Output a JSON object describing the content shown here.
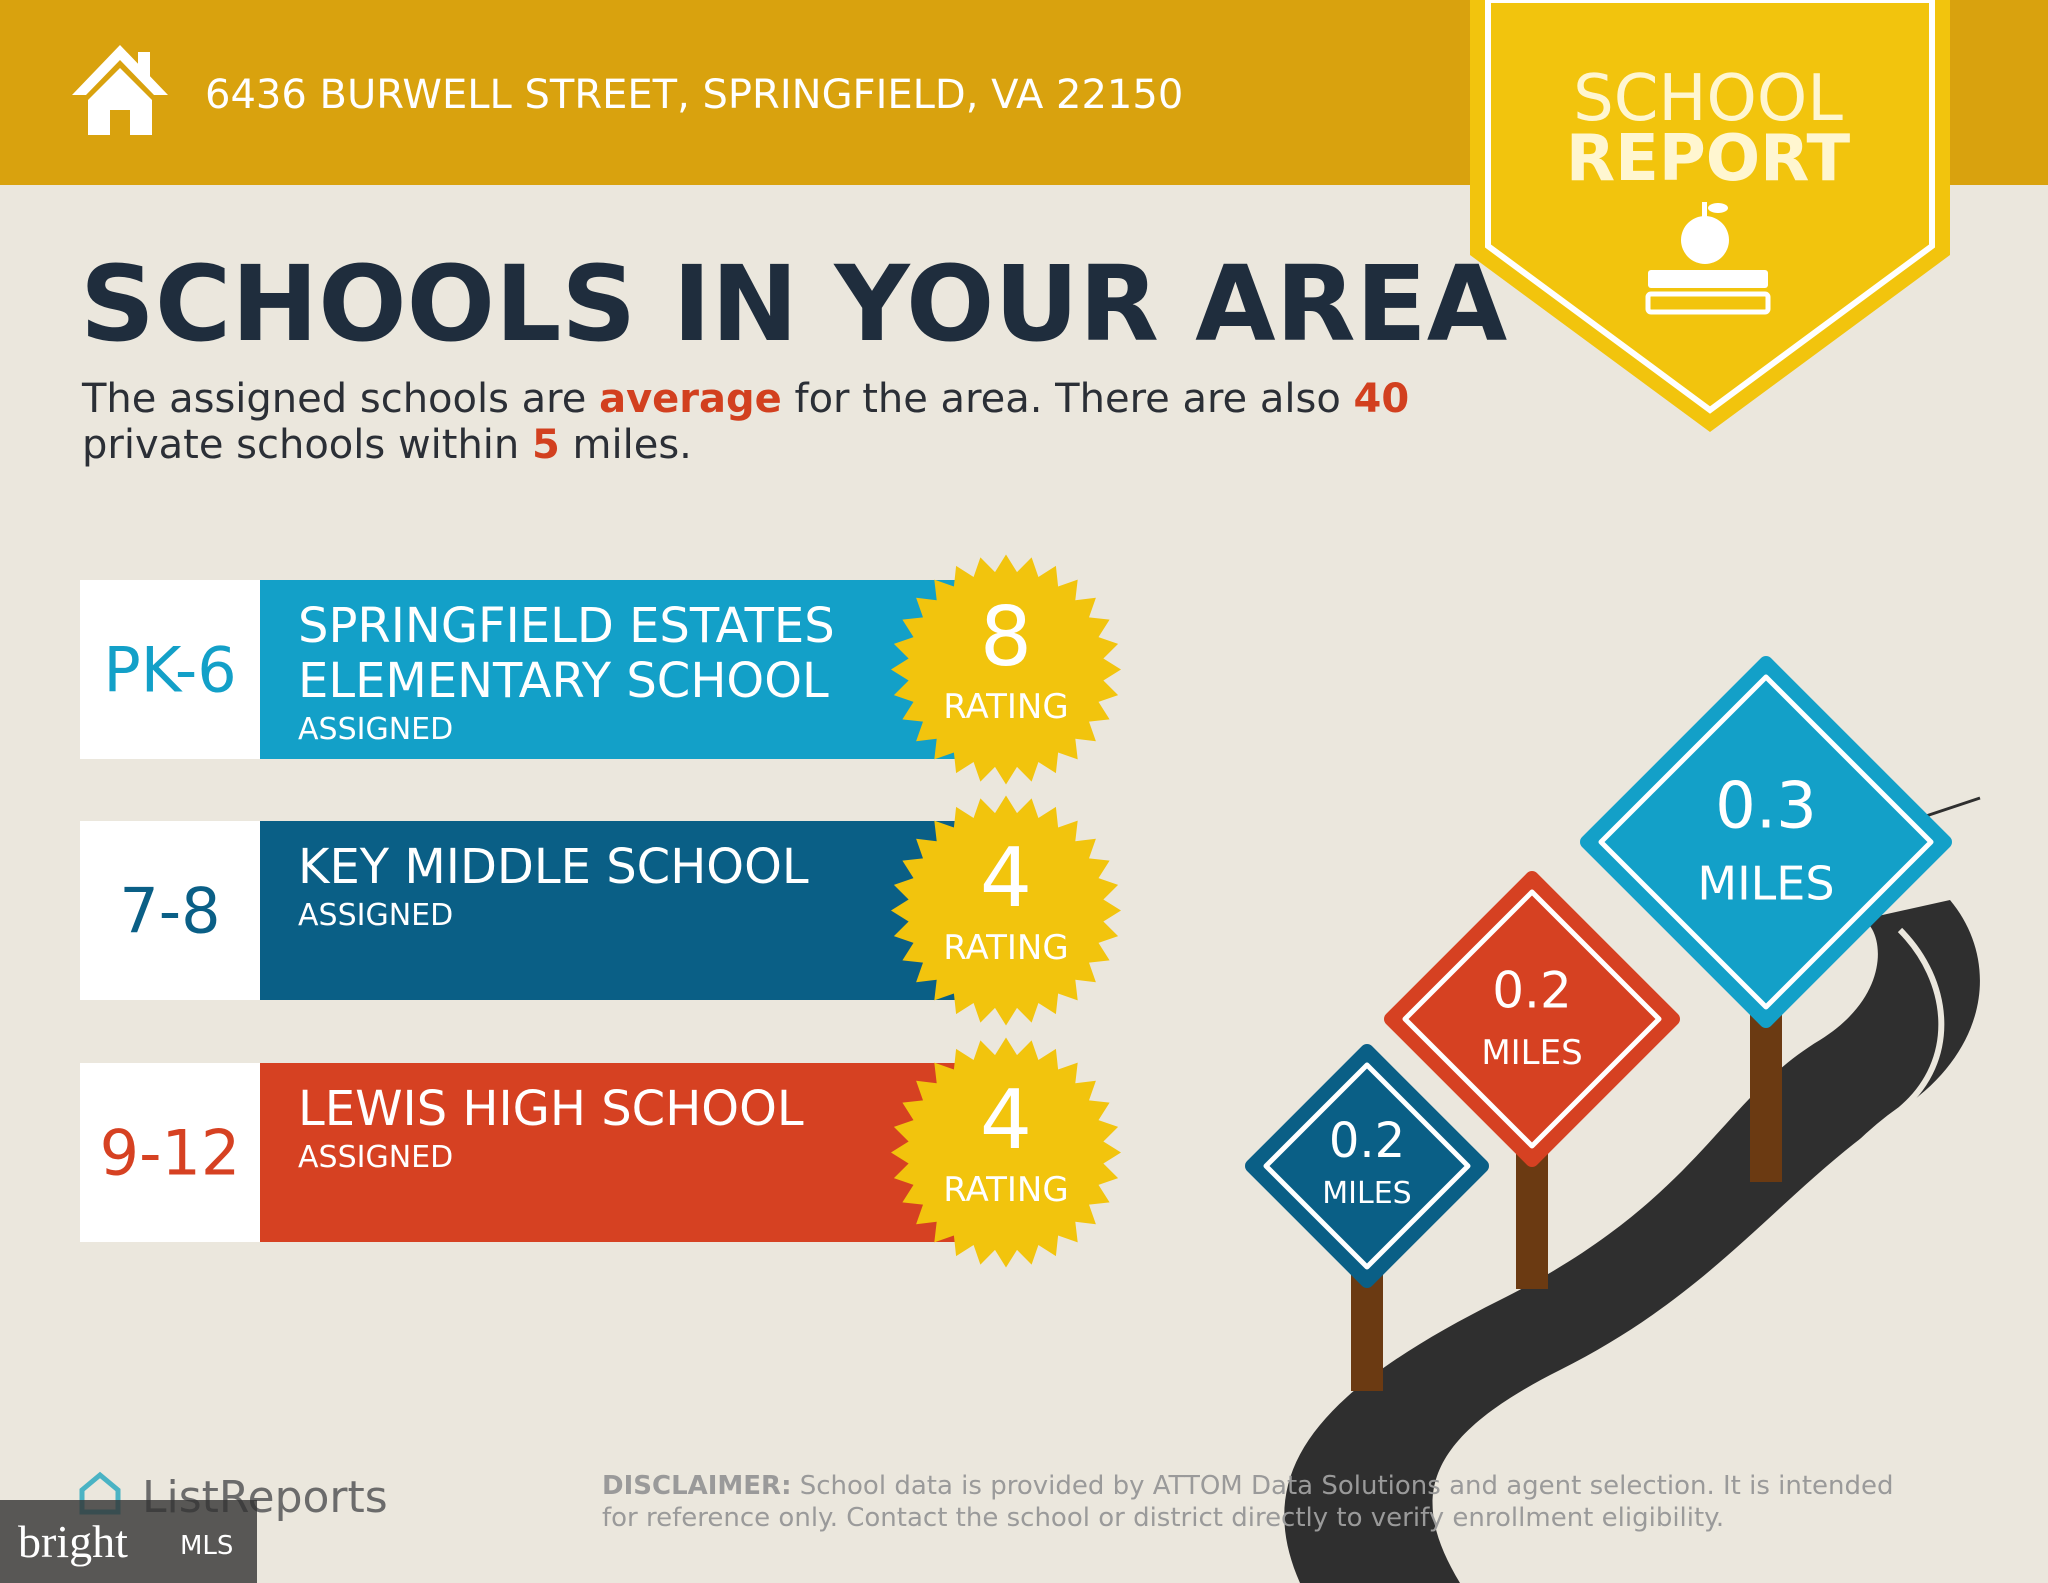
{
  "header": {
    "address": "6436 BURWELL STREET, SPRINGFIELD, VA 22150"
  },
  "badge": {
    "line1": "SCHOOL",
    "line2": "REPORT"
  },
  "title": "SCHOOLS IN YOUR AREA",
  "summary": [
    [
      "The assigned schools are ",
      "average",
      " for the area. There are also ",
      "40"
    ],
    [
      "private schools within ",
      "5",
      " miles."
    ]
  ],
  "schools": [
    {
      "grades": "PK-6",
      "name": [
        "SPRINGFIELD ESTATES",
        "ELEMENTARY SCHOOL"
      ],
      "status": "ASSIGNED",
      "rating": 8,
      "rating_label": "RATING"
    },
    {
      "grades": "7-8",
      "name": [
        "KEY MIDDLE SCHOOL"
      ],
      "status": "ASSIGNED",
      "rating": 4,
      "rating_label": "RATING"
    },
    {
      "grades": "9-12",
      "name": [
        "LEWIS HIGH SCHOOL"
      ],
      "status": "ASSIGNED",
      "rating": 4,
      "rating_label": "RATING"
    }
  ],
  "signs": [
    {
      "distance": "0.3",
      "unit": "MILES"
    },
    {
      "distance": "0.2",
      "unit": "MILES"
    },
    {
      "distance": "0.2",
      "unit": "MILES"
    }
  ],
  "footer": {
    "brand": "ListReports",
    "disclaimer_label": "DISCLAIMER:",
    "disclaimer_line1": " School data is provided by ATTOM Data Solutions and agent selection. It is intended",
    "disclaimer_line2": "for reference only. Contact the school or district directly to verify enrollment eligibility."
  },
  "watermark": {
    "brand": "bright",
    "suffix": "MLS"
  }
}
